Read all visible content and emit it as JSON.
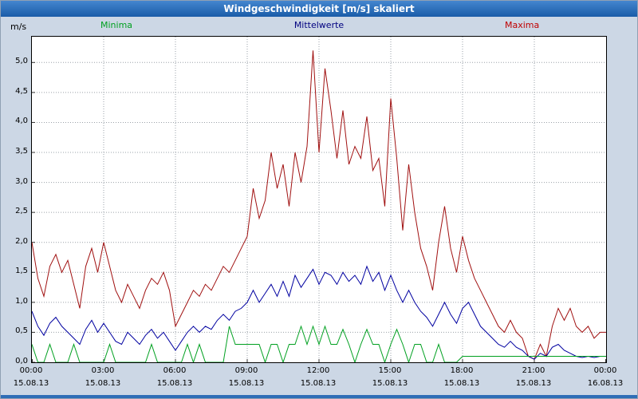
{
  "title": "Windgeschwindigkeit [m/s] skaliert",
  "unit_label": "m/s",
  "colors": {
    "titlebar": "#1a5ca8",
    "background": "#ccd7e5",
    "grid": "#9aa0a8",
    "minima": "#00a020",
    "mittelwerte": "#0000a0",
    "maxima": "#a01010"
  },
  "legend": [
    {
      "label": "Minima",
      "color": "#00a020"
    },
    {
      "label": "Mittelwerte",
      "color": "#000080"
    },
    {
      "label": "Maxima",
      "color": "#c00000"
    }
  ],
  "chart_data": {
    "type": "line",
    "title": "Windgeschwindigkeit [m/s] skaliert",
    "ylabel": "m/s",
    "ylim": [
      0,
      5.43
    ],
    "x_hours_range": [
      0,
      24
    ],
    "sample_interval_minutes": 15,
    "grid": "dotted",
    "y_ticks": [
      {
        "value": 5.0,
        "label": "5,0"
      },
      {
        "value": 4.5,
        "label": "4,5"
      },
      {
        "value": 4.0,
        "label": "4,0"
      },
      {
        "value": 3.5,
        "label": "3,5"
      },
      {
        "value": 3.0,
        "label": "3,0"
      },
      {
        "value": 2.5,
        "label": "2,5"
      },
      {
        "value": 2.0,
        "label": "2,0"
      },
      {
        "value": 1.5,
        "label": "1,5"
      },
      {
        "value": 1.0,
        "label": "1,0"
      },
      {
        "value": 0.5,
        "label": "0,5"
      },
      {
        "value": 0.0,
        "label": "0,0"
      }
    ],
    "x_ticks": [
      {
        "hour": 0,
        "time": "00:00",
        "date": "15.08.13"
      },
      {
        "hour": 3,
        "time": "03:00",
        "date": "15.08.13"
      },
      {
        "hour": 6,
        "time": "06:00",
        "date": "15.08.13"
      },
      {
        "hour": 9,
        "time": "09:00",
        "date": "15.08.13"
      },
      {
        "hour": 12,
        "time": "12:00",
        "date": "15.08.13"
      },
      {
        "hour": 15,
        "time": "15:00",
        "date": "15.08.13"
      },
      {
        "hour": 18,
        "time": "18:00",
        "date": "15.08.13"
      },
      {
        "hour": 21,
        "time": "21:00",
        "date": "15.08.13"
      },
      {
        "hour": 24,
        "time": "00:00",
        "date": "16.08.13"
      }
    ],
    "series": [
      {
        "name": "Maxima",
        "color": "#a01010",
        "values": [
          2.0,
          1.4,
          1.1,
          1.6,
          1.8,
          1.5,
          1.7,
          1.3,
          0.9,
          1.6,
          1.9,
          1.5,
          2.0,
          1.6,
          1.2,
          1.0,
          1.3,
          1.1,
          0.9,
          1.2,
          1.4,
          1.3,
          1.5,
          1.2,
          0.6,
          0.8,
          1.0,
          1.2,
          1.1,
          1.3,
          1.2,
          1.4,
          1.6,
          1.5,
          1.7,
          1.9,
          2.1,
          2.9,
          2.4,
          2.7,
          3.5,
          2.9,
          3.3,
          2.6,
          3.5,
          3.0,
          3.6,
          5.2,
          3.5,
          4.9,
          4.2,
          3.4,
          4.2,
          3.3,
          3.6,
          3.4,
          4.1,
          3.2,
          3.4,
          2.6,
          4.4,
          3.4,
          2.2,
          3.3,
          2.5,
          1.9,
          1.6,
          1.2,
          2.0,
          2.6,
          1.9,
          1.5,
          2.1,
          1.7,
          1.4,
          1.2,
          1.0,
          0.8,
          0.6,
          0.5,
          0.7,
          0.5,
          0.4,
          0.1,
          0.05,
          0.3,
          0.1,
          0.6,
          0.9,
          0.7,
          0.9,
          0.6,
          0.5,
          0.6,
          0.4,
          0.5,
          0.5
        ]
      },
      {
        "name": "Mittelwerte",
        "color": "#0000a0",
        "values": [
          0.85,
          0.6,
          0.45,
          0.65,
          0.75,
          0.6,
          0.5,
          0.4,
          0.3,
          0.55,
          0.7,
          0.5,
          0.65,
          0.5,
          0.35,
          0.3,
          0.5,
          0.4,
          0.3,
          0.45,
          0.55,
          0.4,
          0.5,
          0.35,
          0.2,
          0.35,
          0.5,
          0.6,
          0.5,
          0.6,
          0.55,
          0.7,
          0.8,
          0.7,
          0.85,
          0.9,
          1.0,
          1.2,
          1.0,
          1.15,
          1.3,
          1.1,
          1.35,
          1.1,
          1.45,
          1.25,
          1.4,
          1.55,
          1.3,
          1.5,
          1.45,
          1.3,
          1.5,
          1.35,
          1.45,
          1.3,
          1.6,
          1.35,
          1.5,
          1.2,
          1.45,
          1.2,
          1.0,
          1.2,
          1.0,
          0.85,
          0.75,
          0.6,
          0.8,
          1.0,
          0.8,
          0.65,
          0.9,
          1.0,
          0.8,
          0.6,
          0.5,
          0.4,
          0.3,
          0.25,
          0.35,
          0.25,
          0.2,
          0.1,
          0.05,
          0.15,
          0.1,
          0.25,
          0.3,
          0.2,
          0.15,
          0.1,
          0.08,
          0.1,
          0.08,
          0.1,
          0.1
        ]
      },
      {
        "name": "Minima",
        "color": "#00a020",
        "values": [
          0.3,
          0.0,
          0.0,
          0.3,
          0.0,
          0.0,
          0.0,
          0.3,
          0.0,
          0.0,
          0.0,
          0.0,
          0.0,
          0.3,
          0.0,
          0.0,
          0.0,
          0.0,
          0.0,
          0.0,
          0.3,
          0.0,
          0.0,
          0.0,
          0.0,
          0.0,
          0.3,
          0.0,
          0.3,
          0.0,
          0.0,
          0.0,
          0.0,
          0.6,
          0.3,
          0.3,
          0.3,
          0.3,
          0.3,
          0.0,
          0.3,
          0.3,
          0.0,
          0.3,
          0.3,
          0.6,
          0.3,
          0.6,
          0.3,
          0.6,
          0.3,
          0.3,
          0.55,
          0.3,
          0.0,
          0.3,
          0.55,
          0.3,
          0.3,
          0.0,
          0.3,
          0.55,
          0.3,
          0.0,
          0.3,
          0.3,
          0.0,
          0.0,
          0.3,
          0.0,
          0.0,
          0.0,
          0.1,
          0.1,
          0.1,
          0.1,
          0.1,
          0.1,
          0.1,
          0.1,
          0.1,
          0.1,
          0.1,
          0.1,
          0.1,
          0.1,
          0.1,
          0.1,
          0.1,
          0.1,
          0.1,
          0.1,
          0.1,
          0.1,
          0.1,
          0.1,
          0.1
        ]
      }
    ]
  }
}
